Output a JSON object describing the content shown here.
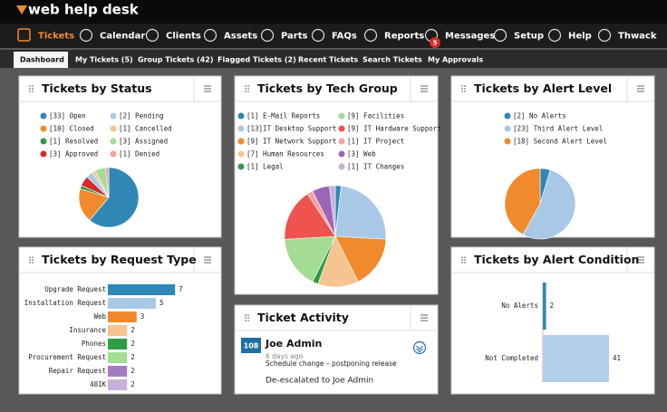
{
  "header": {
    "logo": "web help desk"
  },
  "nav": {
    "items": [
      "Tickets",
      "Calendar",
      "Clients",
      "Assets",
      "Parts",
      "FAQs",
      "Reports",
      "Messages",
      "Setup",
      "Help",
      "Thwack"
    ],
    "badge": "5"
  },
  "tabs": [
    "Dashboard",
    "My Tickets (5)",
    "Group Tickets (42)",
    "Flagged Tickets (2)",
    "Recent Tickets",
    "Search Tickets",
    "My Approvals"
  ],
  "chart_data": [
    {
      "type": "pie",
      "title": "Tickets by Status",
      "categories": [
        "[33] Open",
        "[10] Closed",
        "[1] Resolved",
        "[3] Approved",
        "[2] Pending",
        "[1] Cancelled",
        "[3] Assigned",
        "[1] Denied"
      ],
      "values": [
        33,
        10,
        1,
        3,
        2,
        1,
        3,
        1
      ],
      "colors": [
        "#2f87b5",
        "#f08a2c",
        "#2f9b47",
        "#d52b2b",
        "#a9c8e6",
        "#f6c48f",
        "#a3dc93",
        "#f4a3a0"
      ]
    },
    {
      "type": "pie",
      "title": "Tickets by Tech Group",
      "categories": [
        "[1] E-Mail Reports",
        "[13]IT Desktop Support",
        "[9] IT Network Support",
        "[7] Human Resources",
        "[1] Legal",
        "[9] Facilities",
        "[9] IT Hardware Support",
        "[1] IT Project",
        "[3] Web",
        "[1] IT Changes"
      ],
      "values": [
        1,
        13,
        9,
        7,
        1,
        9,
        9,
        1,
        3,
        1
      ],
      "colors": [
        "#2f87b5",
        "#a9c8e6",
        "#f08a2c",
        "#f6c48f",
        "#2f9b47",
        "#a3dc93",
        "#ef5350",
        "#f4a3a0",
        "#9c66b8",
        "#c9b0d8"
      ]
    },
    {
      "type": "pie",
      "title": "Tickets by Alert Level",
      "categories": [
        "[2] No Alerts",
        "[23] Third Alert Level",
        "[18] Second Alert Level"
      ],
      "values": [
        2,
        23,
        18
      ],
      "colors": [
        "#2f87b5",
        "#a9c8e6",
        "#f08a2c"
      ]
    },
    {
      "type": "barh",
      "title": "Tickets by Request Type",
      "categories": [
        "Upgrade Request",
        "Installation Request",
        "Web",
        "Insurance",
        "Phones",
        "Procurement Request",
        "Repair Request",
        "401K"
      ],
      "values": [
        7,
        5,
        3,
        2,
        2,
        2,
        2,
        2
      ],
      "colors": [
        "#2f87b5",
        "#a9c8e6",
        "#f08a2c",
        "#f6c48f",
        "#2f9b47",
        "#a3dc93",
        "#a77bc0",
        "#c9b0d8"
      ]
    },
    {
      "type": "barh",
      "title": "Tickets by Alert Condition",
      "categories": [
        "No Alerts",
        "Not Completed"
      ],
      "values": [
        2,
        41
      ],
      "colors": [
        "#2f87b5",
        "#b3cfea"
      ]
    }
  ],
  "activity": {
    "title": "Ticket Activity",
    "id": "108",
    "name": "Joe Admin",
    "time": "6 days ago",
    "subject": "Schedule change – postponing release",
    "note": "De-escalated to Joe Admin"
  }
}
